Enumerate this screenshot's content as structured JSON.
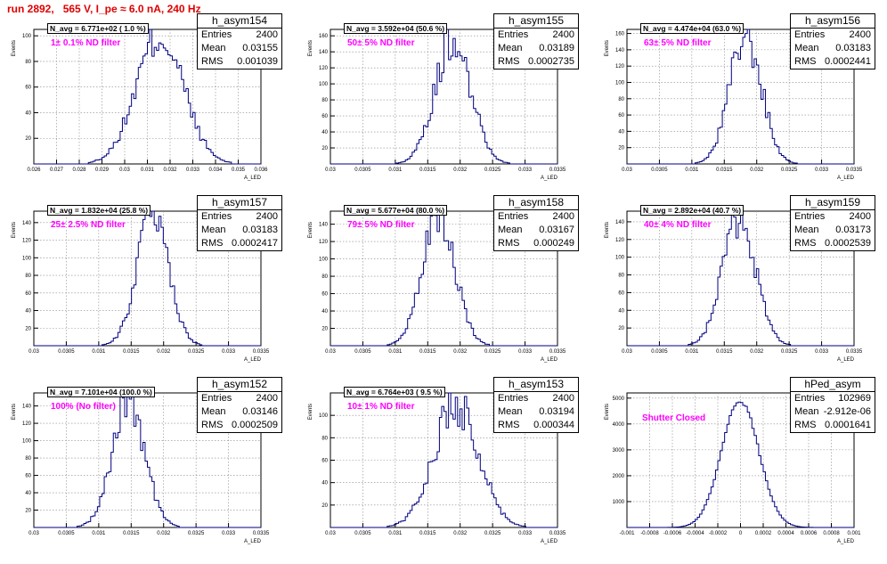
{
  "run_title": "run 2892,   565 V, I_pe ≈ 6.0 nA, 240 Hz",
  "y_axis_label": "Events",
  "x_axis_label": "A_LED",
  "colors": {
    "histogram": "#000080",
    "title": "#e00000",
    "filter_label": "#ff00ff",
    "grid": "#888888"
  },
  "chart_data": [
    {
      "type": "histogram",
      "name": "h_asym154",
      "navg": "N_avg = 6.771e+02 ( 1.0 %)",
      "filter": "1± 0.1% ND filter",
      "entries": "2400",
      "mean": "0.03155",
      "rms": "0.001039",
      "mean_val": 0.03155,
      "rms_val": 0.001039,
      "peak": 100,
      "xlim": [
        0.026,
        0.036
      ],
      "xticks": [
        "0.026",
        "0.027",
        "0.028",
        "0.029",
        "0.03",
        "0.031",
        "0.032",
        "0.033",
        "0.034",
        "0.035",
        "0.036"
      ],
      "ylim": [
        0,
        105
      ],
      "yticks": [
        "0",
        "20",
        "40",
        "60",
        "80",
        "100"
      ],
      "grid": true
    },
    {
      "type": "histogram",
      "name": "h_asym155",
      "navg": "N_avg = 3.592e+04 (50.6 %)",
      "filter": "50± 5% ND filter",
      "entries": "2400",
      "mean": "0.03189",
      "rms": "0.0002735",
      "mean_val": 0.03189,
      "rms_val": 0.0002735,
      "peak": 157,
      "xlim": [
        0.03,
        0.0335
      ],
      "xticks": [
        "0.03",
        "0.0305",
        "0.031",
        "0.0315",
        "0.032",
        "0.0325",
        "0.033",
        "0.0335"
      ],
      "ylim": [
        0,
        168
      ],
      "yticks": [
        "0",
        "20",
        "40",
        "60",
        "80",
        "100",
        "120",
        "140",
        "160"
      ],
      "grid": true
    },
    {
      "type": "histogram",
      "name": "h_asym156",
      "navg": "N_avg = 4.474e+04 (63.0 %)",
      "filter": "63± 5% ND filter",
      "entries": "2400",
      "mean": "0.03183",
      "rms": "0.0002441",
      "mean_val": 0.03183,
      "rms_val": 0.0002441,
      "peak": 157,
      "xlim": [
        0.03,
        0.0335
      ],
      "xticks": [
        "0.03",
        "0.0305",
        "0.031",
        "0.0315",
        "0.032",
        "0.0325",
        "0.033",
        "0.0335"
      ],
      "ylim": [
        0,
        165
      ],
      "yticks": [
        "0",
        "20",
        "40",
        "60",
        "80",
        "100",
        "120",
        "140",
        "160"
      ],
      "grid": true
    },
    {
      "type": "histogram",
      "name": "h_asym157",
      "navg": "N_avg = 1.832e+04 (25.8 %)",
      "filter": "25± 2.5% ND filter",
      "entries": "2400",
      "mean": "0.03183",
      "rms": "0.0002417",
      "mean_val": 0.03183,
      "rms_val": 0.0002417,
      "peak": 146,
      "xlim": [
        0.03,
        0.0335
      ],
      "xticks": [
        "0.03",
        "0.0305",
        "0.031",
        "0.0315",
        "0.032",
        "0.0325",
        "0.033",
        "0.0335"
      ],
      "ylim": [
        0,
        153
      ],
      "yticks": [
        "0",
        "20",
        "40",
        "60",
        "80",
        "100",
        "120",
        "140"
      ],
      "grid": true
    },
    {
      "type": "histogram",
      "name": "h_asym158",
      "navg": "N_avg = 5.677e+04 (80.0 %)",
      "filter": "79± 5% ND filter",
      "entries": "2400",
      "mean": "0.03167",
      "rms": "0.000249",
      "mean_val": 0.03167,
      "rms_val": 0.000249,
      "peak": 150,
      "xlim": [
        0.03,
        0.0335
      ],
      "xticks": [
        "0.03",
        "0.0305",
        "0.031",
        "0.0315",
        "0.032",
        "0.0325",
        "0.033",
        "0.0335"
      ],
      "ylim": [
        0,
        155
      ],
      "yticks": [
        "0",
        "20",
        "40",
        "60",
        "80",
        "100",
        "120",
        "140"
      ],
      "grid": true
    },
    {
      "type": "histogram",
      "name": "h_asym159",
      "navg": "N_avg = 2.892e+04 (40.7 %)",
      "filter": "40± 4% ND filter",
      "entries": "2400",
      "mean": "0.03173",
      "rms": "0.0002539",
      "mean_val": 0.03173,
      "rms_val": 0.0002539,
      "peak": 142,
      "xlim": [
        0.03,
        0.0335
      ],
      "xticks": [
        "0.03",
        "0.0305",
        "0.031",
        "0.0315",
        "0.032",
        "0.0325",
        "0.033",
        "0.0335"
      ],
      "ylim": [
        0,
        152
      ],
      "yticks": [
        "0",
        "20",
        "40",
        "60",
        "80",
        "100",
        "120",
        "140"
      ],
      "grid": true
    },
    {
      "type": "histogram",
      "name": "h_asym152",
      "navg": "N_avg = 7.101e+04 (100.0 %)",
      "filter": "100% (No filter)",
      "entries": "2400",
      "mean": "0.03146",
      "rms": "0.0002509",
      "mean_val": 0.03146,
      "rms_val": 0.0002509,
      "peak": 145,
      "xlim": [
        0.03,
        0.0335
      ],
      "xticks": [
        "0.03",
        "0.0305",
        "0.031",
        "0.0315",
        "0.032",
        "0.0325",
        "0.033",
        "0.0335"
      ],
      "ylim": [
        0,
        155
      ],
      "yticks": [
        "0",
        "20",
        "40",
        "60",
        "80",
        "100",
        "120",
        "140"
      ],
      "grid": true
    },
    {
      "type": "histogram",
      "name": "h_asym153",
      "navg": "N_avg = 6.764e+03 ( 9.5 %)",
      "filter": "10± 1% ND filter",
      "entries": "2400",
      "mean": "0.03194",
      "rms": "0.000344",
      "mean_val": 0.03194,
      "rms_val": 0.000344,
      "peak": 110,
      "xlim": [
        0.03,
        0.0335
      ],
      "xticks": [
        "0.03",
        "0.0305",
        "0.031",
        "0.0315",
        "0.032",
        "0.0325",
        "0.033",
        "0.0335"
      ],
      "ylim": [
        0,
        120
      ],
      "yticks": [
        "0",
        "20",
        "40",
        "60",
        "80",
        "100"
      ],
      "grid": true
    },
    {
      "type": "histogram",
      "name": "hPed_asym",
      "navg": "",
      "filter": "Shutter Closed",
      "entries": "102969",
      "mean": "-2.912e-06",
      "rms": "0.0001641",
      "mean_val": -3e-06,
      "rms_val": 0.0001641,
      "peak": 4900,
      "xlim": [
        -0.001,
        0.001
      ],
      "xticks": [
        "-0.001",
        "-0.0008",
        "-0.0006",
        "-0.0004",
        "-0.0002",
        "0",
        "0.0002",
        "0.0004",
        "0.0006",
        "0.0008",
        "0.001"
      ],
      "ylim": [
        0,
        5200
      ],
      "yticks": [
        "0",
        "1000",
        "2000",
        "3000",
        "4000",
        "5000"
      ],
      "grid": true
    }
  ]
}
